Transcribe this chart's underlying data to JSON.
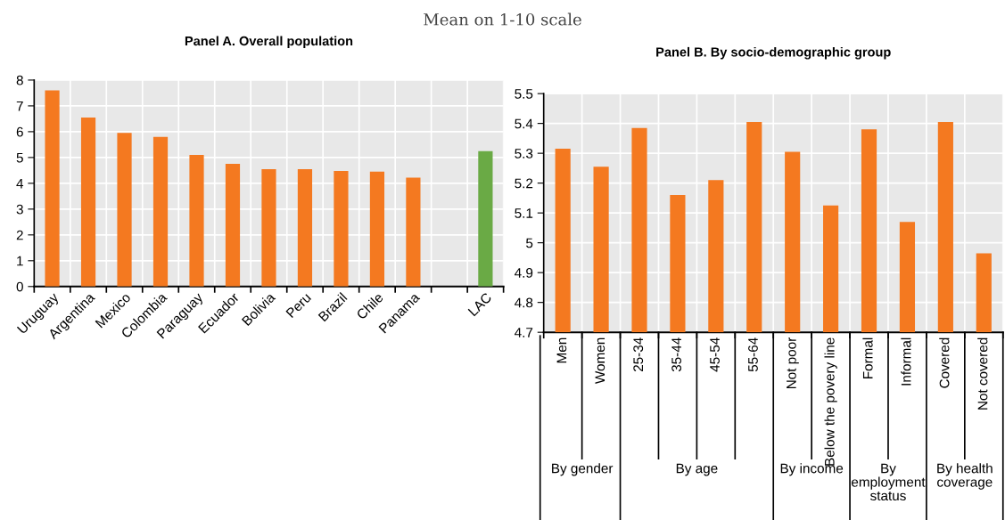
{
  "chart_data": [
    {
      "type": "bar",
      "title": "Panel A. Overall population",
      "subtitle": "Mean on 1-10 scale",
      "categories": [
        "Uruguay",
        "Argentina",
        "Mexico",
        "Colombia",
        "Paraguay",
        "Ecuador",
        "Bolivia",
        "Peru",
        "Brazil",
        "Chile",
        "Panama",
        null,
        "LAC"
      ],
      "values": [
        7.6,
        6.55,
        5.95,
        5.8,
        5.1,
        4.75,
        4.55,
        4.55,
        4.48,
        4.45,
        4.22,
        null,
        5.25
      ],
      "colors": [
        "#f47920",
        "#f47920",
        "#f47920",
        "#f47920",
        "#f47920",
        "#f47920",
        "#f47920",
        "#f47920",
        "#f47920",
        "#f47920",
        "#f47920",
        "#f47920",
        "#6aaa45"
      ],
      "ylim": [
        0,
        8
      ],
      "yticks": [
        0,
        1,
        2,
        3,
        4,
        5,
        6,
        7,
        8
      ],
      "grid": true
    },
    {
      "type": "bar",
      "title": "Panel B. By socio-demographic group",
      "categories": [
        "Men",
        "Women",
        "25-34",
        "35-44",
        "45-54",
        "55-64",
        "Not poor",
        "Below the povery line",
        "Formal",
        "Informal",
        "Covered",
        "Not covered"
      ],
      "values": [
        5.315,
        5.255,
        5.385,
        5.16,
        5.21,
        5.405,
        5.305,
        5.125,
        5.38,
        5.07,
        5.405,
        4.965
      ],
      "color": "#f47920",
      "ylim": [
        4.7,
        5.5
      ],
      "yticks": [
        4.7,
        4.8,
        4.9,
        5,
        5.1,
        5.2,
        5.3,
        5.4,
        5.5
      ],
      "grid": true,
      "annotations": [
        "By gender",
        "By age",
        "By income",
        "By\nemployment\nstatus",
        "By health\ncoverage"
      ]
    }
  ]
}
